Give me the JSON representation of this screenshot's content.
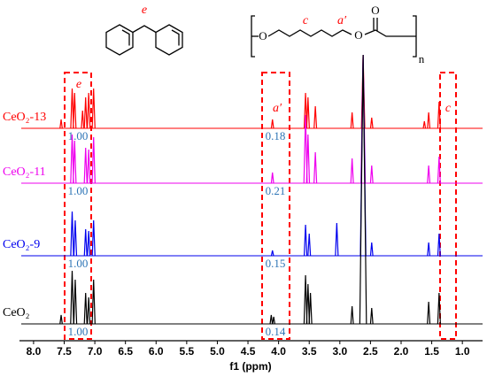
{
  "chart_data": {
    "type": "spectrum",
    "xlabel": "f1 (ppm)",
    "xlim": [
      8.23,
      0.67
    ],
    "xticks": [
      {
        "value": 8,
        "label": "8.0"
      },
      7.5,
      {
        "value": 7,
        "label": "7.0"
      },
      6.5,
      {
        "value": 6,
        "label": "6.0"
      },
      5.5,
      {
        "value": 5,
        "label": "5.0"
      },
      4.5,
      {
        "value": 4,
        "label": "4.0"
      },
      3.5,
      {
        "value": 3,
        "label": "3.0"
      },
      2.5,
      {
        "value": 2,
        "label": "2.0"
      },
      1.5,
      {
        "value": 1,
        "label": "1.0"
      }
    ],
    "peak_labels": [
      "e",
      "a′",
      "c"
    ],
    "structures": {
      "left": [
        "e"
      ],
      "right": [
        "O",
        "c",
        "a′",
        "O",
        "O",
        "n"
      ]
    },
    "series": [
      {
        "name": "CeO₂-13",
        "color": "#ff0000",
        "x": [
          7.55,
          7.37,
          7.33,
          7.2,
          7.15,
          7.1,
          7.02,
          4.1,
          3.56,
          3.52,
          3.4,
          2.8,
          2.62,
          2.48,
          1.62,
          1.55,
          1.38
        ],
        "values": [
          10,
          45,
          40,
          20,
          35,
          40,
          45,
          10,
          40,
          35,
          25,
          18,
          83,
          12,
          8,
          18,
          30
        ],
        "integrals": [
          {
            "value": 1,
            "label": "1.00"
          },
          0.18
        ]
      },
      {
        "name": "CeO₂-11",
        "color": "#ee00ee",
        "x": [
          7.37,
          7.33,
          7.15,
          7.1,
          7.02,
          4.1,
          3.56,
          3.52,
          3.4,
          2.8,
          2.62,
          2.48,
          1.55,
          1.38
        ],
        "values": [
          55,
          48,
          40,
          38,
          52,
          12,
          77,
          55,
          35,
          28,
          145,
          20,
          20,
          30
        ],
        "integrals": [
          {
            "value": 1,
            "label": "1.00"
          },
          0.21
        ]
      },
      {
        "name": "CeO₂-9",
        "color": "#0000ee",
        "x": [
          7.37,
          7.32,
          7.15,
          7.1,
          7.02,
          4.1,
          3.56,
          3.5,
          3.05,
          2.62,
          2.48,
          1.55,
          1.38
        ],
        "values": [
          50,
          40,
          30,
          28,
          40,
          6,
          35,
          25,
          37,
          227,
          15,
          15,
          25
        ],
        "integrals": [
          {
            "value": 1,
            "label": "1.00"
          },
          0.15
        ]
      },
      {
        "name": "CeO₂",
        "color": "#000000",
        "x": [
          7.55,
          7.37,
          7.32,
          7.15,
          7.1,
          7.02,
          4.12,
          4.08,
          3.56,
          3.52,
          3.48,
          2.8,
          2.62,
          2.48,
          1.55,
          1.38
        ],
        "values": [
          10,
          60,
          50,
          35,
          30,
          50,
          10,
          8,
          55,
          45,
          35,
          20,
          304,
          18,
          25,
          35
        ],
        "integrals": [
          {
            "value": 1,
            "label": "1.00"
          },
          0.14
        ]
      }
    ]
  }
}
